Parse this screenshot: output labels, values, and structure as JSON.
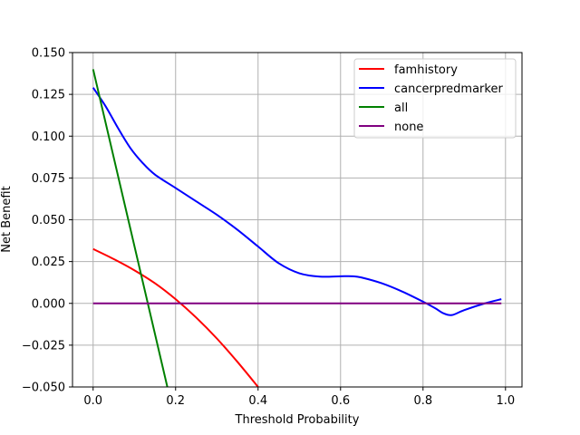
{
  "chart_data": {
    "type": "line",
    "title": "",
    "xlabel": "Threshold Probability",
    "ylabel": "Net Benefit",
    "xlim": [
      -0.05,
      1.04
    ],
    "ylim": [
      -0.05,
      0.15
    ],
    "grid": true,
    "legend_position": "top-right",
    "xticks": [
      0.0,
      0.2,
      0.4,
      0.6,
      0.8,
      1.0
    ],
    "xtick_labels": [
      "0.0",
      "0.2",
      "0.4",
      "0.6",
      "0.8",
      "1.0"
    ],
    "yticks": [
      -0.05,
      -0.025,
      0.0,
      0.025,
      0.05,
      0.075,
      0.1,
      0.125,
      0.15
    ],
    "ytick_labels": [
      "−0.050",
      "−0.025",
      "0.000",
      "0.025",
      "0.050",
      "0.075",
      "0.100",
      "0.125",
      "0.150"
    ],
    "series": [
      {
        "name": "famhistory",
        "color": "#ff0000",
        "x": [
          0.0,
          0.05,
          0.1,
          0.15,
          0.2,
          0.25,
          0.3,
          0.35,
          0.4
        ],
        "y": [
          0.0325,
          0.0265,
          0.0198,
          0.012,
          0.0025,
          -0.0085,
          -0.021,
          -0.035,
          -0.05
        ]
      },
      {
        "name": "cancerpredmarker",
        "color": "#0000ff",
        "x": [
          0.0,
          0.03,
          0.06,
          0.09,
          0.12,
          0.15,
          0.2,
          0.25,
          0.3,
          0.35,
          0.4,
          0.45,
          0.5,
          0.55,
          0.6,
          0.63,
          0.65,
          0.7,
          0.75,
          0.8,
          0.83,
          0.85,
          0.87,
          0.9,
          0.95,
          0.99
        ],
        "y": [
          0.129,
          0.118,
          0.105,
          0.093,
          0.084,
          0.077,
          0.069,
          0.061,
          0.053,
          0.044,
          0.034,
          0.024,
          0.018,
          0.016,
          0.0162,
          0.0162,
          0.0155,
          0.012,
          0.007,
          0.001,
          -0.003,
          -0.006,
          -0.007,
          -0.004,
          0.0,
          0.0025
        ]
      },
      {
        "name": "all",
        "color": "#008000",
        "x": [
          0.0,
          0.18
        ],
        "y": [
          0.14,
          -0.05
        ]
      },
      {
        "name": "none",
        "color": "#800080",
        "x": [
          0.0,
          0.99
        ],
        "y": [
          0.0,
          0.0
        ]
      }
    ]
  }
}
